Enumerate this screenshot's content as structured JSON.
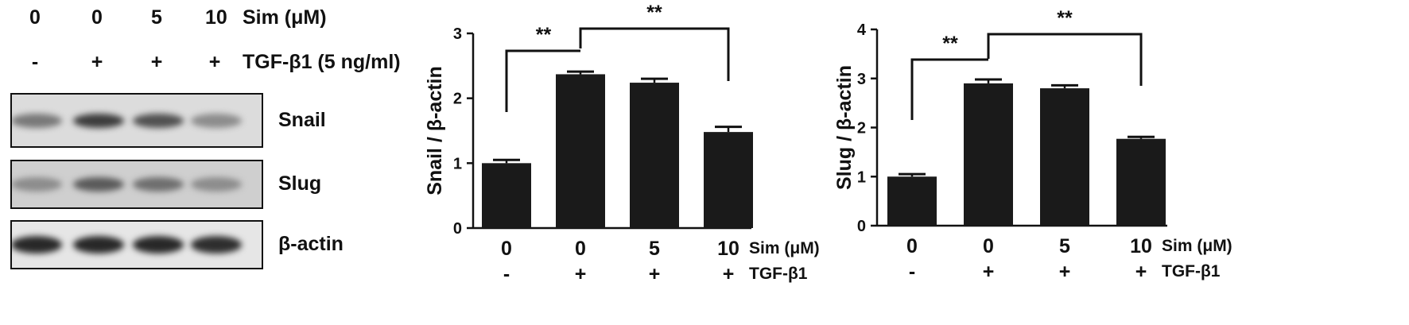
{
  "blot": {
    "lanes": [
      {
        "sim": "0",
        "tgf": "-"
      },
      {
        "sim": "0",
        "tgf": "+"
      },
      {
        "sim": "5",
        "tgf": "+"
      },
      {
        "sim": "10",
        "tgf": "+"
      }
    ],
    "sim_header": "Sim (μM)",
    "tgf_header": "TGF-β1 (5 ng/ml)",
    "rows": [
      {
        "label": "Snail",
        "intensity": [
          0.55,
          0.85,
          0.75,
          0.45
        ]
      },
      {
        "label": "Slug",
        "intensity": [
          0.45,
          0.7,
          0.6,
          0.45
        ]
      },
      {
        "label": "β-actin",
        "intensity": [
          0.95,
          0.95,
          0.95,
          0.92
        ]
      }
    ]
  },
  "chart_data": [
    {
      "type": "bar",
      "categories": [
        "0|-",
        "0|+",
        "5|+",
        "10|+"
      ],
      "sim_labels": [
        "0",
        "0",
        "5",
        "10"
      ],
      "tgf_labels": [
        "-",
        "+",
        "+",
        "+"
      ],
      "sim_row_label": "Sim (μM)",
      "tgf_row_label": "TGF-β1",
      "values": [
        1.0,
        2.37,
        2.24,
        1.48
      ],
      "errors": [
        0.05,
        0.04,
        0.06,
        0.08
      ],
      "ylabel": "Snail / β-actin",
      "xlabel": "",
      "ylim": [
        0,
        3
      ],
      "yticks": [
        "0",
        "1",
        "2",
        "3"
      ],
      "significance": [
        {
          "from": 0,
          "to": 1,
          "label": "**"
        },
        {
          "from": 1,
          "to": 3,
          "label": "**"
        }
      ],
      "bar_color": "#1a1a1a"
    },
    {
      "type": "bar",
      "categories": [
        "0|-",
        "0|+",
        "5|+",
        "10|+"
      ],
      "sim_labels": [
        "0",
        "0",
        "5",
        "10"
      ],
      "tgf_labels": [
        "-",
        "+",
        "+",
        "+"
      ],
      "sim_row_label": "Sim (μM)",
      "tgf_row_label": "TGF-β1",
      "values": [
        1.0,
        2.9,
        2.8,
        1.77
      ],
      "errors": [
        0.05,
        0.08,
        0.06,
        0.04
      ],
      "ylabel": "Slug / β-actin",
      "xlabel": "",
      "ylim": [
        0,
        4
      ],
      "yticks": [
        "0",
        "1",
        "2",
        "3",
        "4"
      ],
      "significance": [
        {
          "from": 0,
          "to": 1,
          "label": "**"
        },
        {
          "from": 1,
          "to": 3,
          "label": "**"
        }
      ],
      "bar_color": "#1a1a1a"
    }
  ]
}
